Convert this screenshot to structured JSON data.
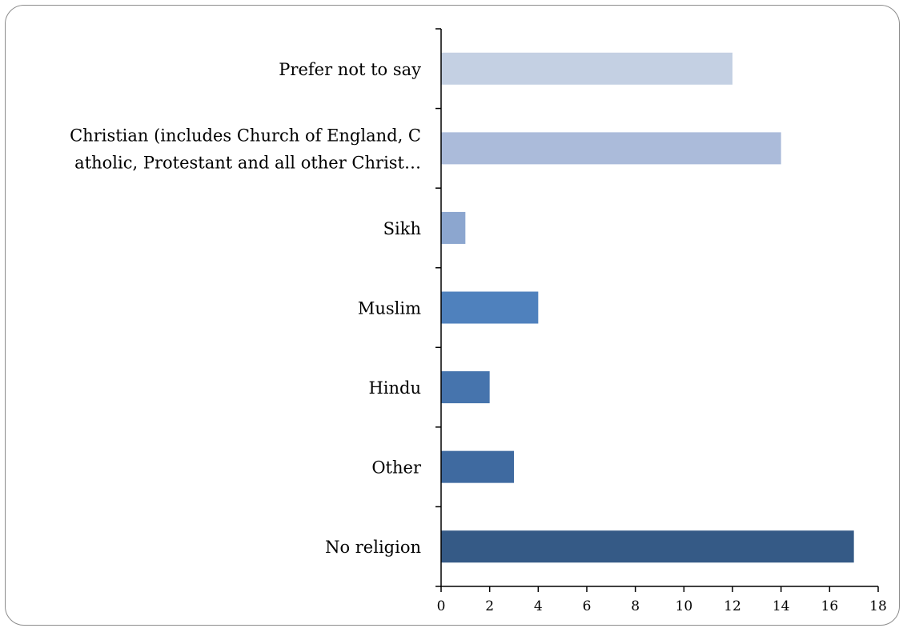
{
  "chart_data": {
    "type": "bar",
    "orientation": "horizontal",
    "categories": [
      "No religion",
      "Other",
      "Hindu",
      "Muslim",
      "Sikh",
      "Christian (includes Church of England, Catholic, Protestant and all other Christ…",
      "Prefer not to say"
    ],
    "category_label_lines": [
      [
        "No religion"
      ],
      [
        "Other"
      ],
      [
        "Hindu"
      ],
      [
        "Muslim"
      ],
      [
        "Sikh"
      ],
      [
        "Christian (includes Church of England, C",
        "atholic, Protestant and all other Christ…"
      ],
      [
        "Prefer not to say"
      ]
    ],
    "values": [
      17,
      3,
      2,
      4,
      1,
      14,
      12
    ],
    "colors": [
      "#355a86",
      "#3f6aa0",
      "#4674ad",
      "#4f81bd",
      "#8ca6cf",
      "#abbbda",
      "#c4d0e3"
    ],
    "xlim": [
      0,
      18
    ],
    "xticks": [
      "0",
      "2",
      "4",
      "6",
      "8",
      "10",
      "12",
      "14",
      "16",
      "18"
    ],
    "title": "",
    "xlabel": "",
    "ylabel": "",
    "grid": false,
    "legend": "none"
  }
}
